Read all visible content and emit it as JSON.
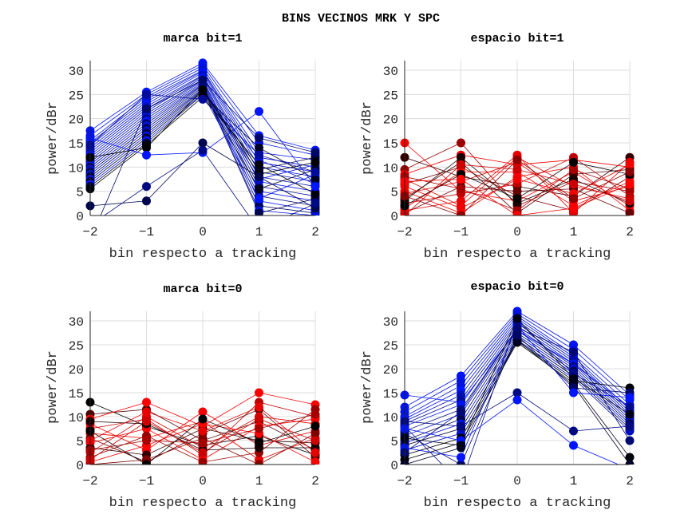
{
  "chart_data": {
    "title": "BINS VECINOS MRK Y SPC",
    "type": "line",
    "subplots": [
      {
        "id": "marca-bit-1",
        "title": "marca bit=1",
        "type": "line",
        "xlabel": "bin respecto a tracking",
        "ylabel": "power/dBr",
        "x": [
          -2,
          -1,
          0,
          1,
          2
        ],
        "xticks": [
          "−2",
          "−1",
          "0",
          "1",
          "2"
        ],
        "yticks": [
          "0",
          "5",
          "10",
          "15",
          "20",
          "25",
          "30"
        ],
        "xlim": [
          -2,
          2
        ],
        "ylim": [
          0,
          32
        ],
        "grid": true,
        "color_family": "blue",
        "series": [
          {
            "values": [
              17.5,
              25.5,
              31.5,
              16.5,
              13.5
            ],
            "shade": 1.0
          },
          {
            "values": [
              16.5,
              25.0,
              31.0,
              15.0,
              12.5
            ],
            "shade": 0.95
          },
          {
            "values": [
              15.5,
              24.5,
              30.5,
              13.0,
              11.5
            ],
            "shade": 0.9
          },
          {
            "values": [
              15.0,
              24.0,
              30.0,
              12.0,
              10.0
            ],
            "shade": 0.85
          },
          {
            "values": [
              14.5,
              23.5,
              29.8,
              11.0,
              9.0
            ],
            "shade": 0.8
          },
          {
            "values": [
              14.0,
              23.0,
              29.5,
              10.0,
              8.0
            ],
            "shade": 1.0
          },
          {
            "values": [
              13.5,
              22.5,
              29.0,
              9.0,
              7.0
            ],
            "shade": 0.75
          },
          {
            "values": [
              13.0,
              22.0,
              28.8,
              8.0,
              6.0
            ],
            "shade": 0.7
          },
          {
            "values": [
              12.5,
              21.5,
              28.5,
              7.0,
              5.0
            ],
            "shade": 0.95
          },
          {
            "values": [
              12.0,
              21.0,
              28.0,
              6.0,
              4.0
            ],
            "shade": 0.6
          },
          {
            "values": [
              11.5,
              20.5,
              27.8,
              5.0,
              3.0
            ],
            "shade": 0.9
          },
          {
            "values": [
              11.0,
              20.0,
              27.5,
              4.0,
              2.0
            ],
            "shade": 0.5
          },
          {
            "values": [
              10.5,
              19.5,
              27.2,
              3.0,
              1.0
            ],
            "shade": 1.0
          },
          {
            "values": [
              10.0,
              19.0,
              27.0,
              2.0,
              0.5
            ],
            "shade": 0.4
          },
          {
            "values": [
              9.5,
              18.5,
              26.8,
              1.0,
              0.0
            ],
            "shade": 0.85
          },
          {
            "values": [
              9.0,
              18.0,
              26.5,
              0.5,
              3.5
            ],
            "shade": 0.3
          },
          {
            "values": [
              8.5,
              17.5,
              26.2,
              7.5,
              10.5
            ],
            "shade": 0.8
          },
          {
            "values": [
              8.0,
              17.0,
              26.0,
              9.5,
              12.0
            ],
            "shade": 0.2
          },
          {
            "values": [
              7.5,
              16.5,
              25.8,
              11.5,
              6.5
            ],
            "shade": 0.9
          },
          {
            "values": [
              7.0,
              16.0,
              25.5,
              5.5,
              9.5
            ],
            "shade": 0.1
          },
          {
            "values": [
              6.5,
              15.5,
              25.2,
              3.5,
              8.5
            ],
            "shade": 1.0
          },
          {
            "values": [
              6.0,
              15.0,
              25.0,
              14.0,
              7.5
            ],
            "shade": 0.15
          },
          {
            "values": [
              5.5,
              14.5,
              24.5,
              10.5,
              4.5
            ],
            "shade": 0.05
          },
          {
            "values": [
              12.0,
              14.0,
              26.0,
              8.5,
              11.0
            ],
            "shade": 0.0
          },
          {
            "values": [
              16.0,
              12.5,
              13.0,
              21.5,
              6.0
            ],
            "shade": 1.0
          },
          {
            "values": [
              2.0,
              3.0,
              15.0,
              8.0,
              1.5
            ],
            "shade": 0.3
          },
          {
            "values": [
              -2.0,
              6.0,
              13.5,
              -3.0,
              2.5
            ],
            "shade": 0.5
          },
          {
            "values": [
              14.5,
              25.0,
              24.0,
              12.5,
              9.0
            ],
            "shade": 0.6
          },
          {
            "values": [
              -5.0,
              22.0,
              28.0,
              16.0,
              13.0
            ],
            "shade": 0.4
          }
        ]
      },
      {
        "id": "espacio-bit-1",
        "title": "espacio bit=1",
        "type": "line",
        "xlabel": "bin respecto a tracking",
        "ylabel": "power/dBr",
        "x": [
          -2,
          -1,
          0,
          1,
          2
        ],
        "xticks": [
          "−2",
          "−1",
          "0",
          "1",
          "2"
        ],
        "yticks": [
          "0",
          "5",
          "10",
          "15",
          "20",
          "25",
          "30"
        ],
        "xlim": [
          -2,
          2
        ],
        "ylim": [
          0,
          32
        ],
        "grid": true,
        "color_family": "red",
        "series": [
          {
            "values": [
              15.0,
              5.0,
              3.0,
              9.0,
              2.0
            ],
            "shade": 1.0
          },
          {
            "values": [
              12.0,
              8.0,
              6.0,
              4.0,
              12.0
            ],
            "shade": 0.2
          },
          {
            "values": [
              9.5,
              15.0,
              2.0,
              7.0,
              5.0
            ],
            "shade": 0.6
          },
          {
            "values": [
              8.5,
              12.5,
              10.5,
              11.5,
              10.0
            ],
            "shade": 0.95
          },
          {
            "values": [
              7.5,
              2.0,
              12.0,
              6.0,
              3.5
            ],
            "shade": 0.9
          },
          {
            "values": [
              6.5,
              10.0,
              4.0,
              1.0,
              8.0
            ],
            "shade": 0.5
          },
          {
            "values": [
              5.0,
              0.5,
              8.0,
              10.0,
              1.0
            ],
            "shade": 1.0
          },
          {
            "values": [
              4.5,
              7.0,
              11.0,
              3.0,
              6.0
            ],
            "shade": 0.85
          },
          {
            "values": [
              3.5,
              11.0,
              0.5,
              8.5,
              9.5
            ],
            "shade": 0.3
          },
          {
            "values": [
              2.5,
              4.5,
              6.5,
              12.0,
              4.0
            ],
            "shade": 0.75
          },
          {
            "values": [
              1.5,
              9.0,
              9.0,
              2.0,
              7.0
            ],
            "shade": 1.0
          },
          {
            "values": [
              0.5,
              6.0,
              5.0,
              5.5,
              0.5
            ],
            "shade": 0.4
          },
          {
            "values": [
              1.0,
              3.0,
              12.5,
              0.5,
              11.0
            ],
            "shade": 0.9
          },
          {
            "values": [
              3.0,
              12.0,
              2.5,
              7.5,
              2.5
            ],
            "shade": 0.1
          },
          {
            "values": [
              6.0,
              1.5,
              7.5,
              4.5,
              10.5
            ],
            "shade": 0.95
          },
          {
            "values": [
              8.0,
              5.5,
              1.0,
              9.5,
              5.5
            ],
            "shade": 0.65
          },
          {
            "values": [
              2.0,
              8.5,
              3.5,
              11.0,
              8.5
            ],
            "shade": 0.0
          },
          {
            "values": [
              0.0,
              10.5,
              9.5,
              6.5,
              3.0
            ],
            "shade": 0.8
          },
          {
            "values": [
              4.0,
              0.0,
              11.5,
              3.5,
              9.0
            ],
            "shade": 0.55
          },
          {
            "values": [
              7.0,
              7.5,
              0.0,
              1.5,
              6.5
            ],
            "shade": 1.0
          }
        ]
      },
      {
        "id": "marca-bit-0",
        "title": "marca bit=0",
        "type": "line",
        "xlabel": "bin respecto a tracking",
        "ylabel": "power/dBr",
        "x": [
          -2,
          -1,
          0,
          1,
          2
        ],
        "xticks": [
          "−2",
          "−1",
          "0",
          "1",
          "2"
        ],
        "yticks": [
          "0",
          "5",
          "10",
          "15",
          "20",
          "25",
          "30"
        ],
        "xlim": [
          -2,
          2
        ],
        "ylim": [
          0,
          32
        ],
        "grid": true,
        "color_family": "red",
        "series": [
          {
            "values": [
              13.0,
              8.0,
              4.0,
              6.0,
              2.0
            ],
            "shade": 0.0
          },
          {
            "values": [
              10.5,
              11.5,
              5.0,
              9.0,
              3.0
            ],
            "shade": 0.3
          },
          {
            "values": [
              9.5,
              13.0,
              8.0,
              15.0,
              12.5
            ],
            "shade": 1.0
          },
          {
            "values": [
              8.5,
              3.0,
              11.0,
              4.0,
              7.0
            ],
            "shade": 0.95
          },
          {
            "values": [
              7.5,
              9.5,
              2.0,
              13.0,
              10.0
            ],
            "shade": 0.75
          },
          {
            "values": [
              6.5,
              5.5,
              9.0,
              1.0,
              5.5
            ],
            "shade": 0.9
          },
          {
            "values": [
              5.5,
              0.5,
              6.5,
              11.5,
              1.5
            ],
            "shade": 0.4
          },
          {
            "values": [
              4.5,
              7.5,
              1.0,
              8.0,
              9.5
            ],
            "shade": 1.0
          },
          {
            "values": [
              3.5,
              2.0,
              7.5,
              5.0,
              4.5
            ],
            "shade": 0.2
          },
          {
            "values": [
              2.5,
              10.0,
              3.5,
              10.0,
              8.5
            ],
            "shade": 0.85
          },
          {
            "values": [
              1.5,
              6.0,
              0.5,
              2.5,
              11.5
            ],
            "shade": 0.6
          },
          {
            "values": [
              0.5,
              4.0,
              8.5,
              6.5,
              0.5
            ],
            "shade": 1.0
          },
          {
            "values": [
              0.0,
              1.0,
              5.5,
              0.0,
              6.5
            ],
            "shade": 0.5
          },
          {
            "values": [
              9.0,
              8.5,
              3.0,
              3.5,
              3.5
            ],
            "shade": 0.1
          },
          {
            "values": [
              5.0,
              11.0,
              7.0,
              12.0,
              2.5
            ],
            "shade": 0.9
          },
          {
            "values": [
              3.0,
              5.0,
              4.5,
              7.5,
              10.5
            ],
            "shade": 0.65
          },
          {
            "values": [
              7.0,
              0.0,
              9.5,
              4.5,
              8.0
            ],
            "shade": 0.0
          },
          {
            "values": [
              1.0,
              9.0,
              2.5,
              9.5,
              5.0
            ],
            "shade": 0.8
          }
        ]
      },
      {
        "id": "espacio-bit-0",
        "title": "espacio bit=0",
        "type": "line",
        "xlabel": "bin respecto a tracking",
        "ylabel": "power/dBr",
        "x": [
          -2,
          -1,
          0,
          1,
          2
        ],
        "xticks": [
          "−2",
          "−1",
          "0",
          "1",
          "2"
        ],
        "yticks": [
          "0",
          "5",
          "10",
          "15",
          "20",
          "25",
          "30"
        ],
        "xlim": [
          -2,
          2
        ],
        "ylim": [
          0,
          32
        ],
        "grid": true,
        "color_family": "blue",
        "series": [
          {
            "values": [
              14.5,
              13.0,
              28.0,
              21.0,
              12.0
            ],
            "shade": 1.0
          },
          {
            "values": [
              12.0,
              18.5,
              32.0,
              25.0,
              14.5
            ],
            "shade": 0.95
          },
          {
            "values": [
              11.0,
              17.5,
              31.5,
              24.0,
              13.5
            ],
            "shade": 0.9
          },
          {
            "values": [
              10.0,
              16.5,
              31.0,
              23.0,
              12.5
            ],
            "shade": 0.85
          },
          {
            "values": [
              9.5,
              15.5,
              30.5,
              22.5,
              11.5
            ],
            "shade": 1.0
          },
          {
            "values": [
              9.0,
              14.5,
              30.0,
              22.0,
              11.0
            ],
            "shade": 0.7
          },
          {
            "values": [
              8.5,
              13.5,
              29.5,
              21.5,
              10.5
            ],
            "shade": 0.6
          },
          {
            "values": [
              8.0,
              12.5,
              29.0,
              21.0,
              10.0
            ],
            "shade": 0.95
          },
          {
            "values": [
              7.0,
              11.5,
              28.5,
              20.5,
              9.5
            ],
            "shade": 0.5
          },
          {
            "values": [
              6.0,
              10.5,
              28.0,
              20.0,
              9.0
            ],
            "shade": 0.8
          },
          {
            "values": [
              5.0,
              9.5,
              27.5,
              19.5,
              8.5
            ],
            "shade": 0.3
          },
          {
            "values": [
              4.5,
              8.5,
              27.0,
              19.0,
              8.0
            ],
            "shade": 0.9
          },
          {
            "values": [
              4.0,
              7.5,
              26.5,
              18.5,
              7.5
            ],
            "shade": 0.2
          },
          {
            "values": [
              3.0,
              6.5,
              26.0,
              18.0,
              7.0
            ],
            "shade": 0.75
          },
          {
            "values": [
              2.0,
              5.5,
              25.8,
              17.5,
              16.0
            ],
            "shade": 0.0
          },
          {
            "values": [
              1.0,
              4.5,
              25.5,
              17.0,
              1.5
            ],
            "shade": 0.05
          },
          {
            "values": [
              0.0,
              3.5,
              26.0,
              16.5,
              0.0
            ],
            "shade": 0.15
          },
          {
            "values": [
              6.5,
              0.0,
              27.0,
              16.0,
              15.0
            ],
            "shade": 0.4
          },
          {
            "values": [
              3.5,
              1.5,
              29.0,
              15.0,
              14.0
            ],
            "shade": 1.0
          },
          {
            "values": [
              8.0,
              -4.0,
              30.0,
              19.0,
              12.0
            ],
            "shade": 0.55
          },
          {
            "values": [
              9.0,
              8.0,
              15.0,
              7.0,
              8.0
            ],
            "shade": 0.5
          },
          {
            "values": [
              7.5,
              5.0,
              13.5,
              4.0,
              -1.0
            ],
            "shade": 1.0
          },
          {
            "values": [
              2.5,
              11.0,
              28.5,
              23.5,
              5.0
            ],
            "shade": 0.45
          },
          {
            "values": [
              5.5,
              4.0,
              30.5,
              18.0,
              10.5
            ],
            "shade": 0.1
          }
        ]
      }
    ]
  }
}
